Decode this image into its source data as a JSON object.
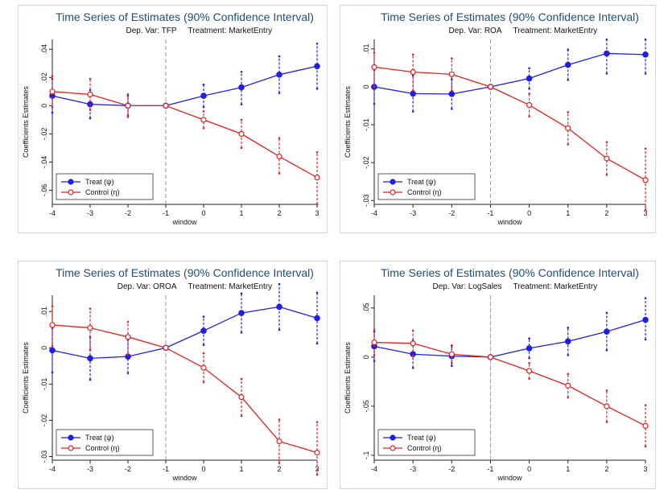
{
  "chart_data": [
    {
      "type": "line",
      "title": "Time Series of Estimates (90% Confidence Interval)",
      "subtitle_depvar": "Dep. Var: TFP",
      "subtitle_treatment": "Treatment: MarketEntry",
      "xlabel": "window",
      "ylabel": "Coefficients Estimates",
      "x": [
        -4,
        -3,
        -2,
        -1,
        0,
        1,
        2,
        3
      ],
      "ylim": [
        -0.07,
        0.047
      ],
      "yticks": [
        0.04,
        0.02,
        0,
        -0.02,
        -0.04,
        -0.06
      ],
      "ytick_labels": [
        ".04",
        ".02",
        "0",
        "-.02",
        "-.04",
        "-.06"
      ],
      "reference_line_x": -1,
      "legend_position": "bottom-left",
      "series": [
        {
          "name": "Treat (ψ)",
          "color": "#1f1fe6",
          "marker": "filled-circle",
          "values": [
            0.007,
            0.001,
            0.0,
            0.0,
            0.007,
            0.013,
            0.022,
            0.028
          ],
          "ci_low": [
            -0.005,
            -0.009,
            -0.007,
            0.0,
            -0.001,
            0.001,
            0.009,
            0.012
          ],
          "ci_high": [
            0.019,
            0.011,
            0.007,
            0.0,
            0.015,
            0.024,
            0.035,
            0.044
          ]
        },
        {
          "name": "Control (η)",
          "color": "#e62020",
          "marker": "hollow-circle",
          "values": [
            0.01,
            0.008,
            0.0,
            0.0,
            -0.01,
            -0.02,
            -0.036,
            -0.051
          ],
          "ci_low": [
            -0.001,
            -0.003,
            -0.008,
            0.0,
            -0.016,
            -0.03,
            -0.048,
            -0.07
          ],
          "ci_high": [
            0.021,
            0.019,
            0.008,
            0.0,
            -0.004,
            -0.01,
            -0.023,
            -0.033
          ]
        }
      ]
    },
    {
      "type": "line",
      "title": "Time Series of Estimates (90% Confidence Interval)",
      "subtitle_depvar": "Dep. Var: ROA",
      "subtitle_treatment": "Treatment: MarketEntry",
      "xlabel": "window",
      "ylabel": "Coefficients Estimates",
      "x": [
        -4,
        -3,
        -2,
        -1,
        0,
        1,
        2,
        3
      ],
      "ylim": [
        -0.031,
        0.0125
      ],
      "yticks": [
        0.01,
        0,
        -0.01,
        -0.02,
        -0.03
      ],
      "ytick_labels": [
        ".01",
        "0",
        "-.01",
        "-.02",
        "-.03"
      ],
      "reference_line_x": -1,
      "legend_position": "bottom-left",
      "series": [
        {
          "name": "Treat (ψ)",
          "color": "#1f1fe6",
          "marker": "filled-circle",
          "values": [
            0.0,
            -0.0018,
            -0.0019,
            0.0,
            0.0022,
            0.0058,
            0.0088,
            0.0085
          ],
          "ci_low": [
            -0.0045,
            -0.0065,
            -0.0058,
            0.0,
            -0.0005,
            0.0018,
            0.0035,
            0.0035
          ],
          "ci_high": [
            0.0045,
            0.003,
            0.002,
            0.0,
            0.0049,
            0.0098,
            0.0125,
            0.0125
          ]
        },
        {
          "name": "Control (η)",
          "color": "#e62020",
          "marker": "hollow-circle",
          "values": [
            0.0052,
            0.0039,
            0.0033,
            0.0,
            -0.0048,
            -0.0109,
            -0.0189,
            -0.0246
          ],
          "ci_low": [
            0.0,
            -0.001,
            -0.001,
            0.0,
            -0.0078,
            -0.0152,
            -0.0232,
            -0.0325
          ],
          "ci_high": [
            0.009,
            0.0085,
            0.0075,
            0.0,
            -0.0018,
            -0.0067,
            -0.0146,
            -0.0163
          ]
        }
      ]
    },
    {
      "type": "line",
      "title": "Time Series of Estimates (90% Confidence Interval)",
      "subtitle_depvar": "Dep. Var: OROA",
      "subtitle_treatment": "Treatment: MarketEntry",
      "xlabel": "window",
      "ylabel": "Coefficients Estimates",
      "x": [
        -4,
        -3,
        -2,
        -1,
        0,
        1,
        2,
        3
      ],
      "ylim": [
        -0.031,
        0.0145
      ],
      "yticks": [
        0.01,
        0,
        -0.01,
        -0.02,
        -0.03
      ],
      "ytick_labels": [
        ".01",
        "0",
        "-.01",
        "-.02",
        "-.03"
      ],
      "reference_line_x": -1,
      "legend_position": "bottom-left",
      "series": [
        {
          "name": "Treat (ψ)",
          "color": "#1f1fe6",
          "marker": "filled-circle",
          "values": [
            -0.0007,
            -0.0029,
            -0.0024,
            0.0,
            0.0047,
            0.0096,
            0.0113,
            0.0082
          ],
          "ci_low": [
            -0.0068,
            -0.0088,
            -0.007,
            0.0,
            0.0008,
            0.0042,
            0.005,
            0.0012
          ],
          "ci_high": [
            0.0054,
            0.003,
            0.0022,
            0.0,
            0.0086,
            0.015,
            0.0176,
            0.0152
          ]
        },
        {
          "name": "Control (η)",
          "color": "#e62020",
          "marker": "hollow-circle",
          "values": [
            0.0063,
            0.0055,
            0.003,
            0.0,
            -0.0055,
            -0.0136,
            -0.0258,
            -0.0289
          ],
          "ci_low": [
            0.0005,
            -0.0005,
            -0.0018,
            0.0,
            -0.0095,
            -0.0188,
            -0.0318,
            -0.035
          ],
          "ci_high": [
            0.0115,
            0.0108,
            0.0072,
            0.0,
            -0.0015,
            -0.0086,
            -0.0198,
            -0.0205
          ]
        }
      ]
    },
    {
      "type": "line",
      "title": "Time Series of Estimates (90% Confidence Interval)",
      "subtitle_depvar": "Dep. Var: LogSales",
      "subtitle_treatment": "Treatment: MarketEntry",
      "xlabel": "window",
      "ylabel": "Coefficients Estimates",
      "x": [
        -4,
        -3,
        -2,
        -1,
        0,
        1,
        2,
        3
      ],
      "ylim": [
        -0.105,
        0.063
      ],
      "yticks": [
        0.05,
        0,
        -0.05,
        -0.1
      ],
      "ytick_labels": [
        ".05",
        "0",
        "-.05",
        "-.1"
      ],
      "reference_line_x": -1,
      "legend_position": "bottom-left",
      "series": [
        {
          "name": "Treat (ψ)",
          "color": "#1f1fe6",
          "marker": "filled-circle",
          "values": [
            0.011,
            0.003,
            0.001,
            0.0,
            0.009,
            0.016,
            0.026,
            0.038
          ],
          "ci_low": [
            -0.004,
            -0.011,
            -0.009,
            0.0,
            -0.001,
            0.002,
            0.007,
            0.018
          ],
          "ci_high": [
            0.026,
            0.017,
            0.011,
            0.0,
            0.019,
            0.03,
            0.045,
            0.06
          ]
        },
        {
          "name": "Control (η)",
          "color": "#e62020",
          "marker": "hollow-circle",
          "values": [
            0.015,
            0.014,
            0.003,
            0.0,
            -0.014,
            -0.029,
            -0.05,
            -0.07
          ],
          "ci_low": [
            0.002,
            0.001,
            -0.006,
            0.0,
            -0.022,
            -0.041,
            -0.066,
            -0.091
          ],
          "ci_high": [
            0.028,
            0.027,
            0.012,
            0.0,
            -0.006,
            -0.017,
            -0.034,
            -0.049
          ]
        }
      ]
    }
  ]
}
